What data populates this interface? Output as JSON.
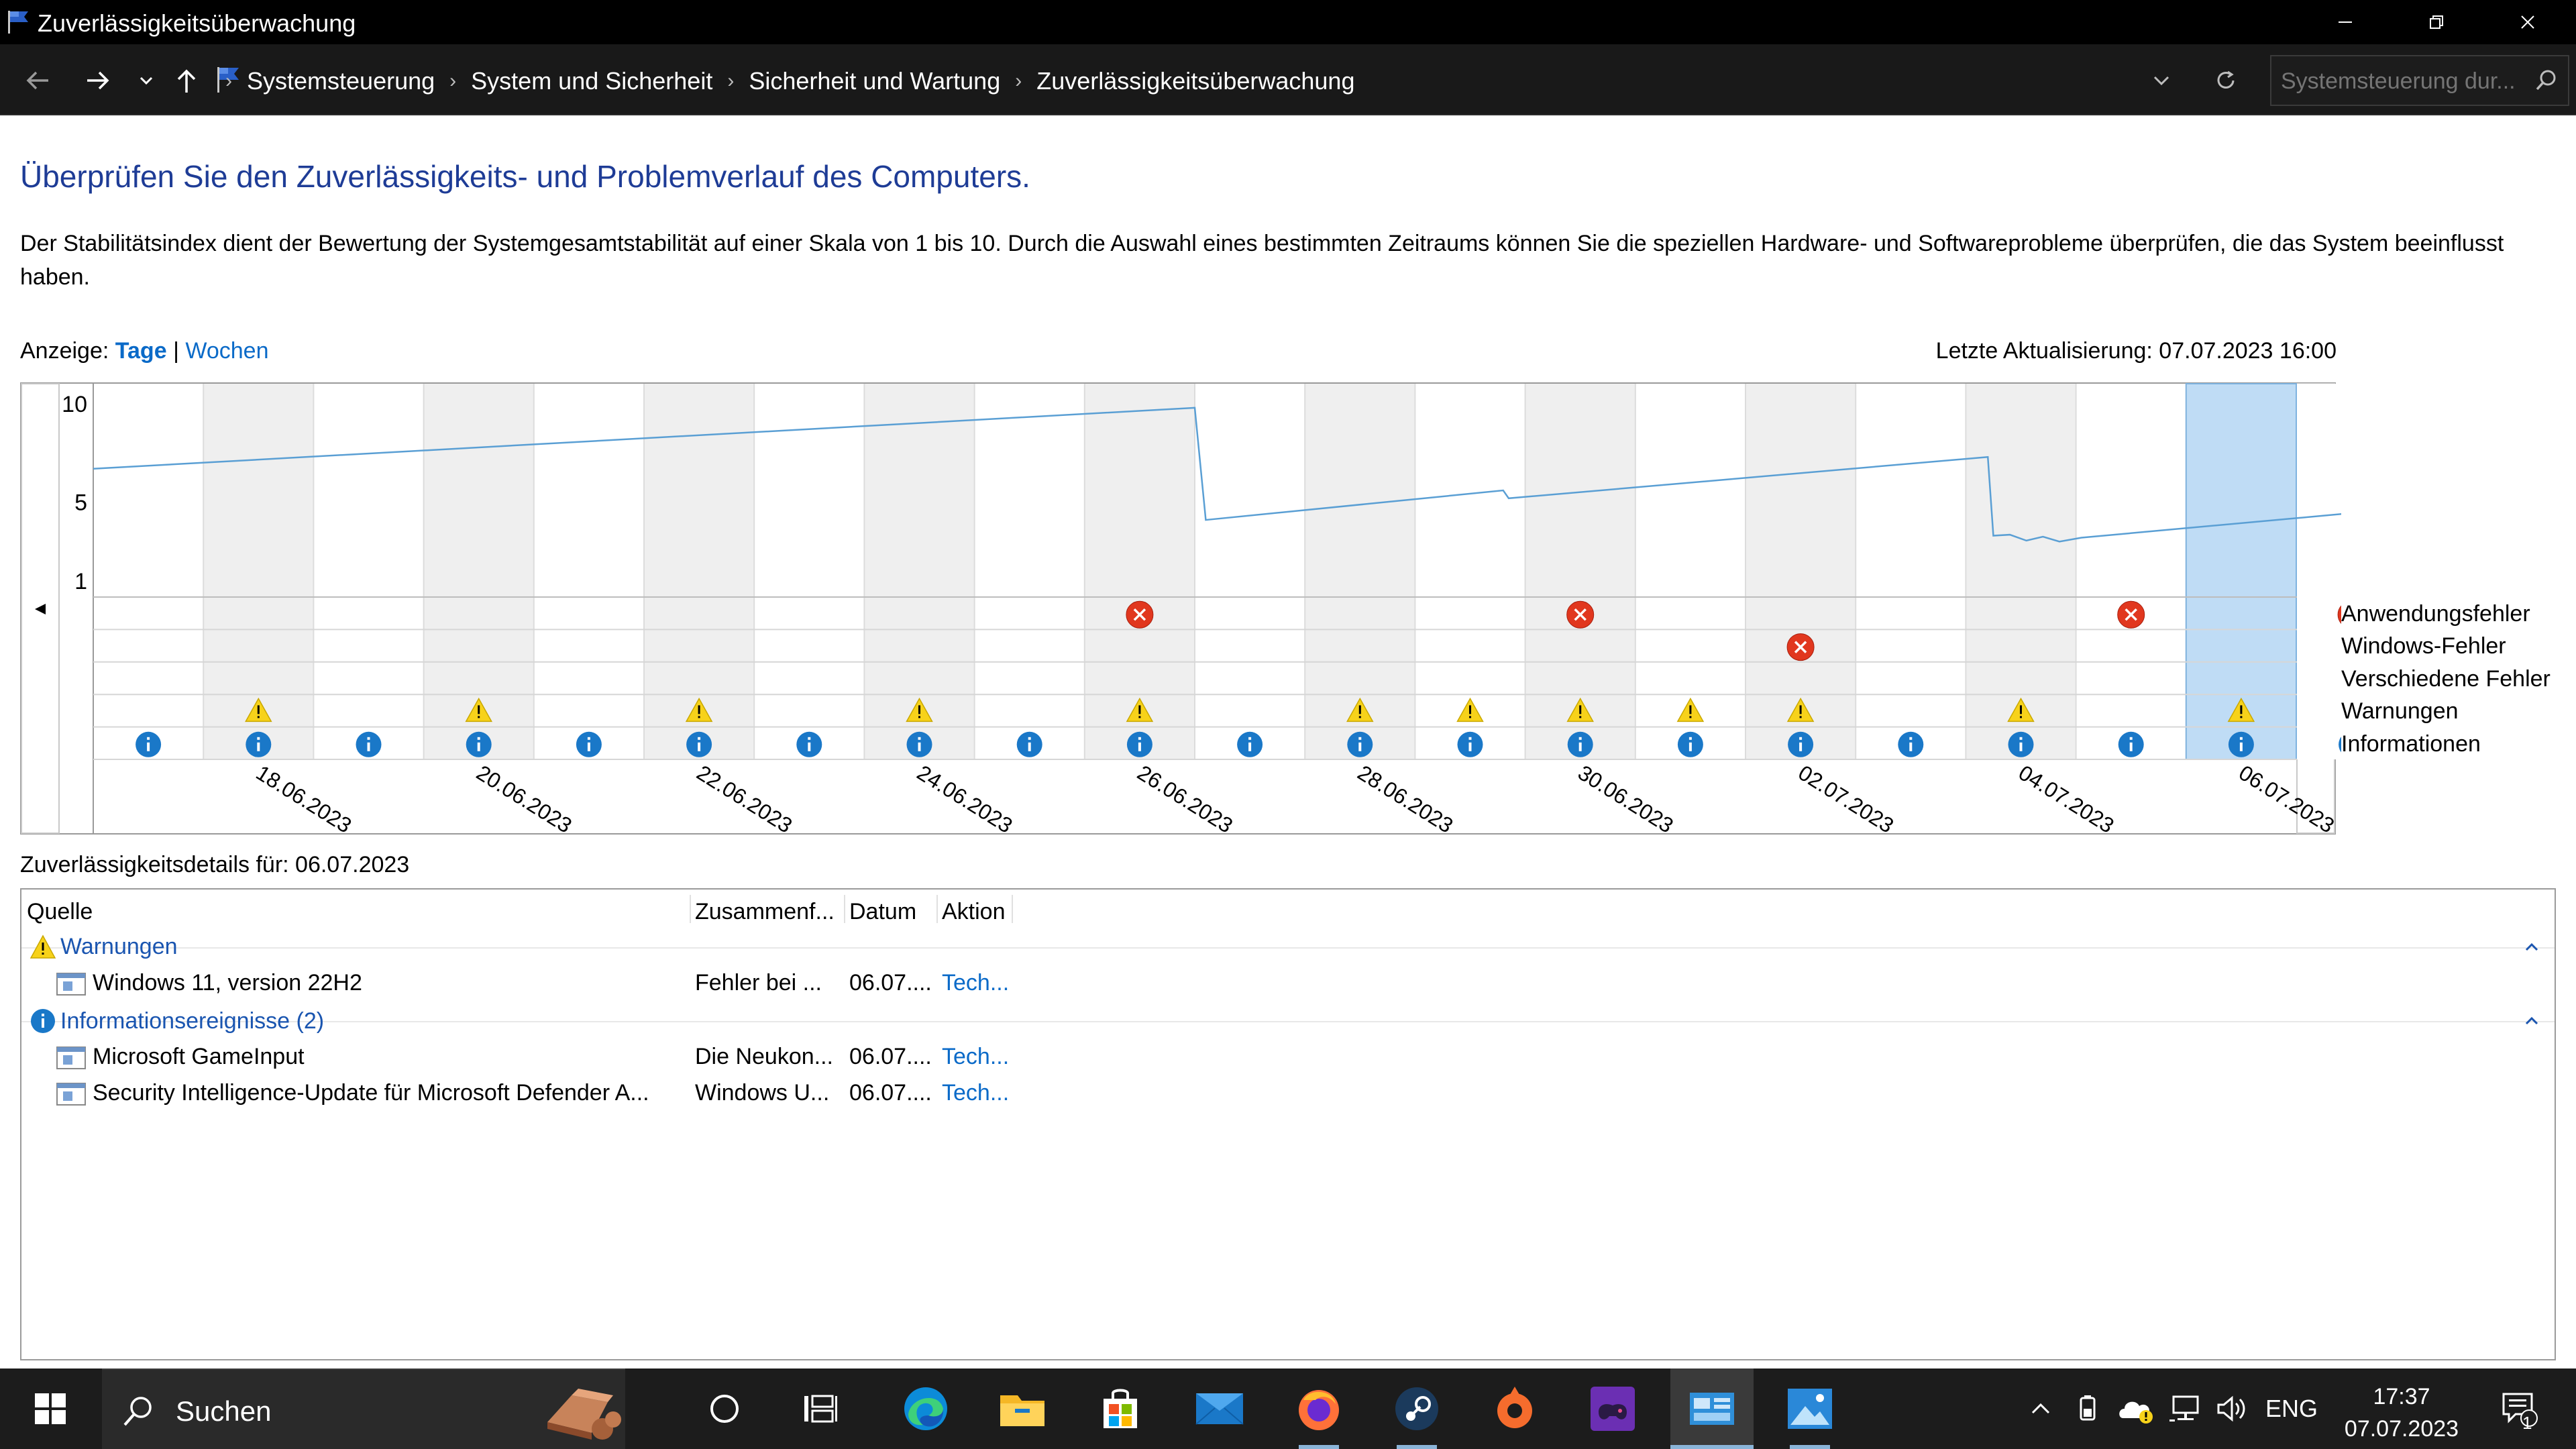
{
  "window": {
    "title": "Zuverlässigkeitsüberwachung"
  },
  "address": {
    "breadcrumbs": [
      "Systemsteuerung",
      "System und Sicherheit",
      "Sicherheit und Wartung",
      "Zuverlässigkeitsüberwachung"
    ],
    "search_placeholder": "Systemsteuerung dur..."
  },
  "main": {
    "heading": "Überprüfen Sie den Zuverlässigkeits- und Problemverlauf des Computers.",
    "description": "Der Stabilitätsindex dient der Bewertung der Systemgesamtstabilität auf einer Skala von 1 bis 10. Durch die Auswahl eines bestimmten Zeitraums können Sie die speziellen Hardware- und Softwareprobleme überprüfen, die das System beeinflusst haben.",
    "view_label": "Anzeige:",
    "view_days": "Tage",
    "view_sep": "|",
    "view_weeks": "Wochen",
    "last_update": "Letzte Aktualisierung: 07.07.2023 16:00"
  },
  "chart_data": {
    "type": "line",
    "y_ticks": [
      "10",
      "5",
      "1"
    ],
    "ylim": [
      1,
      10
    ],
    "days": [
      "17.06.2023",
      "18.06.2023",
      "19.06.2023",
      "20.06.2023",
      "21.06.2023",
      "22.06.2023",
      "23.06.2023",
      "24.06.2023",
      "25.06.2023",
      "26.06.2023",
      "27.06.2023",
      "28.06.2023",
      "29.06.2023",
      "30.06.2023",
      "01.07.2023",
      "02.07.2023",
      "03.07.2023",
      "04.07.2023",
      "05.07.2023",
      "06.07.2023",
      "07.07.2023"
    ],
    "x_labels": [
      "18.06.2023",
      "20.06.2023",
      "22.06.2023",
      "24.06.2023",
      "26.06.2023",
      "28.06.2023",
      "30.06.2023",
      "02.07.2023",
      "04.07.2023",
      "06.07.2023"
    ],
    "selected_day": "06.07.2023",
    "stability": [
      {
        "x": 0.0,
        "y": 6.7
      },
      {
        "x": 10.0,
        "y": 9.8
      },
      {
        "x": 10.1,
        "y": 4.1
      },
      {
        "x": 12.8,
        "y": 5.6
      },
      {
        "x": 12.85,
        "y": 5.2
      },
      {
        "x": 17.2,
        "y": 7.3
      },
      {
        "x": 17.25,
        "y": 3.3
      },
      {
        "x": 17.4,
        "y": 3.35
      },
      {
        "x": 17.55,
        "y": 3.05
      },
      {
        "x": 17.7,
        "y": 3.25
      },
      {
        "x": 17.85,
        "y": 3.0
      },
      {
        "x": 18.05,
        "y": 3.2
      },
      {
        "x": 21.0,
        "y": 4.7
      }
    ],
    "event_rows": [
      "Anwendungsfehler",
      "Windows-Fehler",
      "Verschiedene Fehler",
      "Warnungen",
      "Informationen"
    ],
    "events": {
      "Anwendungsfehler": [
        "26.06.2023",
        "30.06.2023",
        "05.07.2023",
        "07.07.2023"
      ],
      "Windows-Fehler": [
        "02.07.2023"
      ],
      "Verschiedene Fehler": [],
      "Warnungen": [
        "18.06.2023",
        "20.06.2023",
        "22.06.2023",
        "24.06.2023",
        "26.06.2023",
        "28.06.2023",
        "29.06.2023",
        "30.06.2023",
        "01.07.2023",
        "02.07.2023",
        "04.07.2023",
        "06.07.2023"
      ],
      "Informationen": [
        "17.06.2023",
        "18.06.2023",
        "19.06.2023",
        "20.06.2023",
        "21.06.2023",
        "22.06.2023",
        "23.06.2023",
        "24.06.2023",
        "25.06.2023",
        "26.06.2023",
        "27.06.2023",
        "28.06.2023",
        "29.06.2023",
        "30.06.2023",
        "01.07.2023",
        "02.07.2023",
        "03.07.2023",
        "04.07.2023",
        "05.07.2023",
        "06.07.2023",
        "07.07.2023"
      ]
    }
  },
  "details": {
    "label": "Zuverlässigkeitsdetails für: 06.07.2023",
    "columns": [
      "Quelle",
      "Zusammenf...",
      "Datum",
      "Aktion"
    ],
    "groups": [
      {
        "title": "Warnungen",
        "rows": [
          {
            "source": "Windows 11, version 22H2",
            "summary": "Fehler bei ...",
            "date": "06.07....",
            "action": "Tech..."
          }
        ]
      },
      {
        "title": "Informationsereignisse (2)",
        "rows": [
          {
            "source": "Microsoft GameInput",
            "summary": "Die Neukon...",
            "date": "06.07....",
            "action": "Tech..."
          },
          {
            "source": "Security Intelligence-Update für Microsoft Defender A...",
            "summary": "Windows U...",
            "date": "06.07....",
            "action": "Tech..."
          }
        ]
      }
    ]
  },
  "taskbar": {
    "search_label": "Suchen",
    "language": "ENG",
    "time": "17:37",
    "date": "07.07.2023",
    "notification_count": "1",
    "apps": [
      "task-view-icon",
      "edge-icon",
      "file-explorer-icon",
      "store-icon",
      "mail-icon",
      "firefox-icon",
      "steam-icon",
      "origin-icon",
      "game-app-icon",
      "control-panel-icon",
      "photos-icon"
    ]
  },
  "colors": {
    "accent": "#0a6ac8",
    "heading": "#1e3c96",
    "stability_line": "#5a9fd4",
    "selection": "#bfdcf5",
    "error": "#e1371e",
    "warning": "#f7d21a",
    "info": "#1a78c8"
  }
}
